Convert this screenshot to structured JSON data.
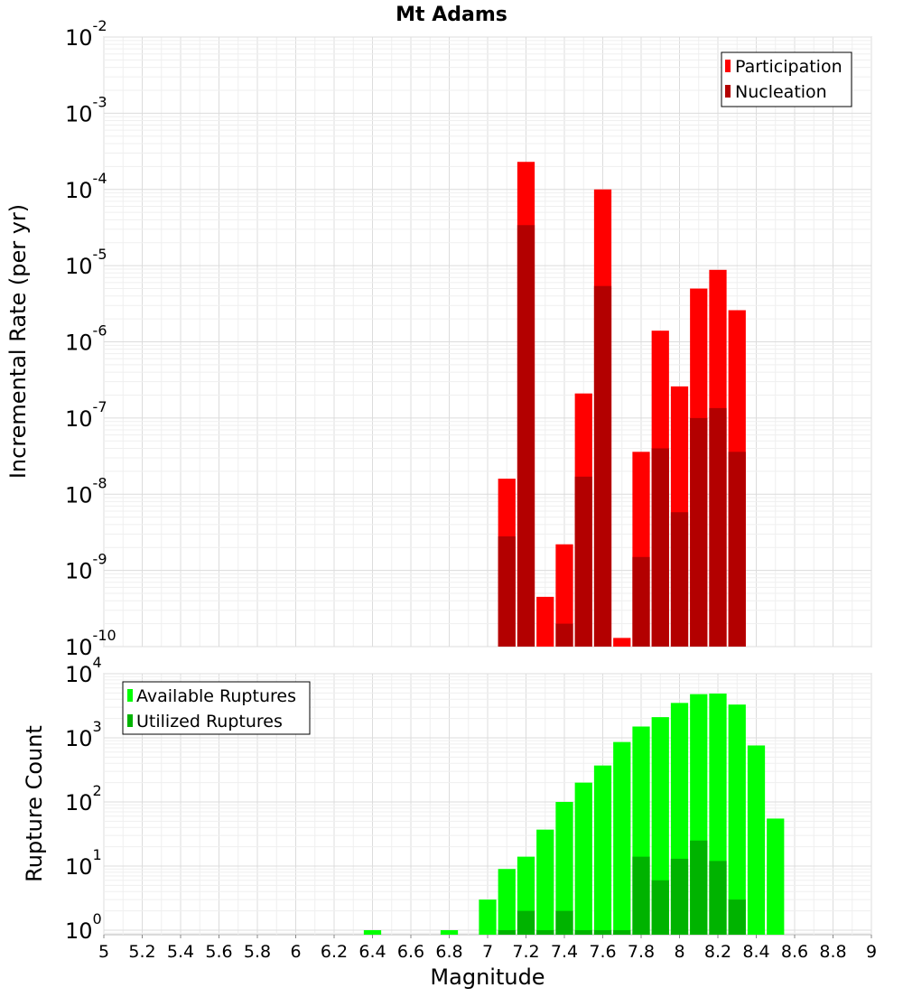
{
  "chart_data": [
    {
      "type": "bar",
      "title": "Mt Adams",
      "ylabel": "Incremental Rate (per yr)",
      "xlabel": "",
      "yscale": "log",
      "ylim": [
        1e-10,
        0.01
      ],
      "xlim": [
        5,
        9
      ],
      "ytick_mantissa": "10",
      "ytick_exponents": [
        "-10",
        "-9",
        "-8",
        "-7",
        "-6",
        "-5",
        "-4",
        "-3",
        "-2"
      ],
      "legend": {
        "placement": "top-right",
        "entries": [
          "Participation",
          "Nucleation"
        ]
      },
      "grid": true,
      "bar_width": 0.1,
      "series": [
        {
          "name": "Participation",
          "color": "#ff0000",
          "x": [
            7.1,
            7.2,
            7.3,
            7.4,
            7.5,
            7.6,
            7.7,
            7.8,
            7.9,
            8.0,
            8.1,
            8.2,
            8.3
          ],
          "values": [
            1.6e-08,
            0.00023,
            4.5e-10,
            2.2e-09,
            2.1e-07,
            0.0001,
            1.3e-10,
            3.6e-08,
            1.4e-06,
            2.6e-07,
            5e-06,
            8.8e-06,
            2.6e-06
          ]
        },
        {
          "name": "Nucleation",
          "color": "#b30000",
          "x": [
            7.1,
            7.2,
            7.4,
            7.5,
            7.6,
            7.8,
            7.9,
            8.0,
            8.1,
            8.2,
            8.3
          ],
          "values": [
            2.8e-09,
            3.4e-05,
            2e-10,
            1.7e-08,
            5.4e-06,
            1.5e-09,
            4e-08,
            5.8e-09,
            1e-07,
            1.35e-07,
            3.6e-08
          ]
        }
      ]
    },
    {
      "type": "bar",
      "title": "",
      "ylabel": "Rupture Count",
      "xlabel": "Magnitude",
      "yscale": "log",
      "ylim": [
        0.85,
        10000
      ],
      "xlim": [
        5,
        9
      ],
      "ytick_mantissa": "10",
      "ytick_exponents": [
        "0",
        "1",
        "2",
        "3",
        "4"
      ],
      "xtick_labels": [
        "5",
        "5.2",
        "5.4",
        "5.6",
        "5.8",
        "6",
        "6.2",
        "6.4",
        "6.6",
        "6.8",
        "7",
        "7.2",
        "7.4",
        "7.6",
        "7.8",
        "8",
        "8.2",
        "8.4",
        "8.6",
        "8.8",
        "9"
      ],
      "legend": {
        "placement": "top-left",
        "entries": [
          "Available Ruptures",
          "Utilized Ruptures"
        ]
      },
      "grid": true,
      "bar_width": 0.1,
      "series": [
        {
          "name": "Available Ruptures",
          "color": "#00ff00",
          "x": [
            6.4,
            6.8,
            7.0,
            7.1,
            7.2,
            7.3,
            7.4,
            7.5,
            7.6,
            7.7,
            7.8,
            7.9,
            8.0,
            8.1,
            8.2,
            8.3,
            8.4,
            8.5
          ],
          "values": [
            1,
            1,
            3,
            9,
            14,
            37,
            100,
            200,
            370,
            860,
            1500,
            2100,
            3500,
            4800,
            4900,
            3300,
            760,
            55
          ]
        },
        {
          "name": "Utilized Ruptures",
          "color": "#00b300",
          "x": [
            7.1,
            7.2,
            7.3,
            7.4,
            7.5,
            7.6,
            7.7,
            7.8,
            7.9,
            8.0,
            8.1,
            8.2,
            8.3
          ],
          "values": [
            1,
            2,
            1,
            2,
            1,
            1,
            1,
            14,
            6,
            13,
            25,
            12,
            3
          ]
        }
      ]
    }
  ]
}
